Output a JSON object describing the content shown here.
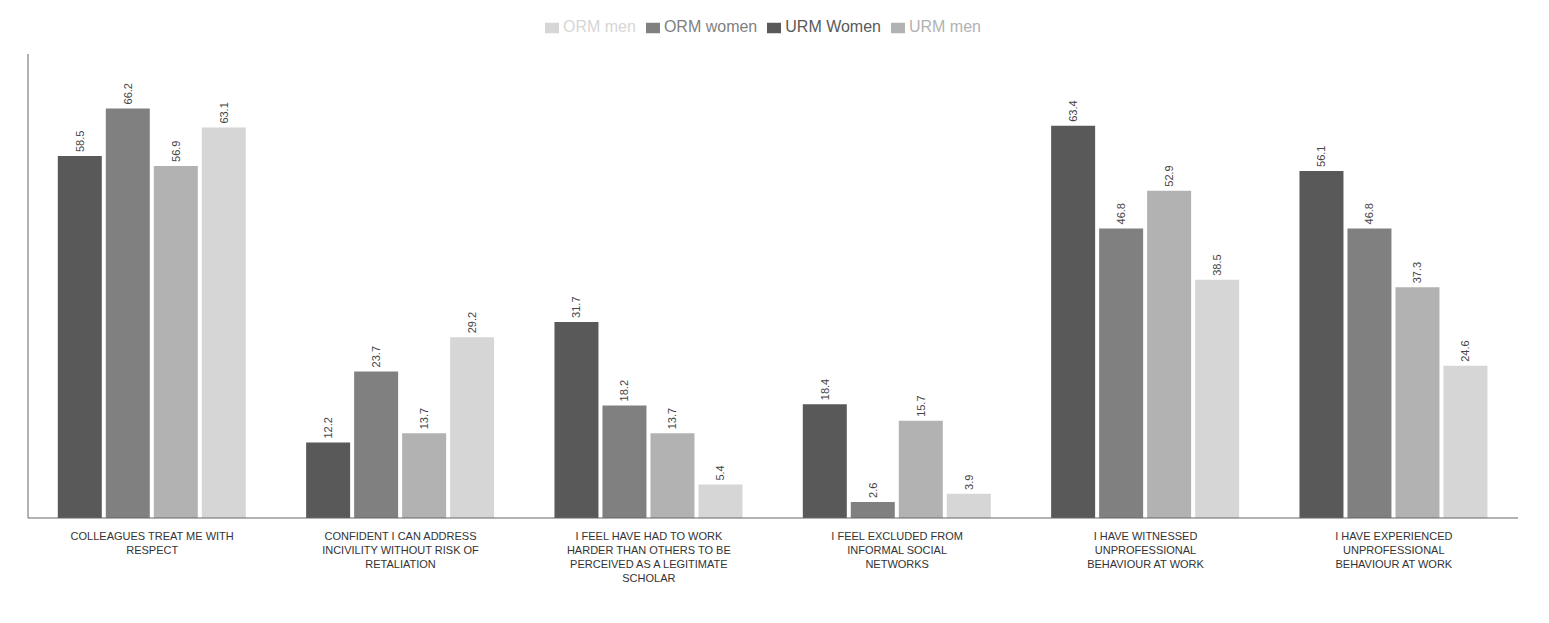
{
  "chart_data": {
    "type": "bar",
    "categories": [
      "COLLEAGUES TREAT ME WITH\nRESPECT",
      "CONFIDENT I CAN ADDRESS\nINCIVILITY WITHOUT RISK OF\nRETALIATION",
      "I FEEL HAVE HAD TO WORK\nHARDER THAN OTHERS TO BE\nPERCEIVED AS A LEGITIMATE\nSCHOLAR",
      "I FEEL EXCLUDED FROM\nINFORMAL SOCIAL\nNETWORKS",
      "I HAVE WITNESSED\nUNPROFESSIONAL\nBEHAVIOUR AT WORK",
      "I HAVE EXPERIENCED\nUNPROFESSIONAL\nBEHAVIOUR AT WORK"
    ],
    "series": [
      {
        "name": "URM Women",
        "color": "#595959",
        "values": [
          58.5,
          12.2,
          31.7,
          18.4,
          63.4,
          56.1
        ]
      },
      {
        "name": "ORM women",
        "color": "#808080",
        "values": [
          66.2,
          23.7,
          18.2,
          2.6,
          46.8,
          46.8
        ]
      },
      {
        "name": "URM men",
        "color": "#b2b2b2",
        "values": [
          56.9,
          13.7,
          13.7,
          15.7,
          52.9,
          37.3
        ]
      },
      {
        "name": "ORM men",
        "color": "#d6d6d6",
        "values": [
          63.1,
          29.2,
          5.4,
          3.9,
          38.5,
          24.6
        ]
      }
    ],
    "ylim": [
      0,
      75
    ],
    "tick_labels": "x",
    "data_labels": true,
    "legend": "top",
    "grid": false
  }
}
